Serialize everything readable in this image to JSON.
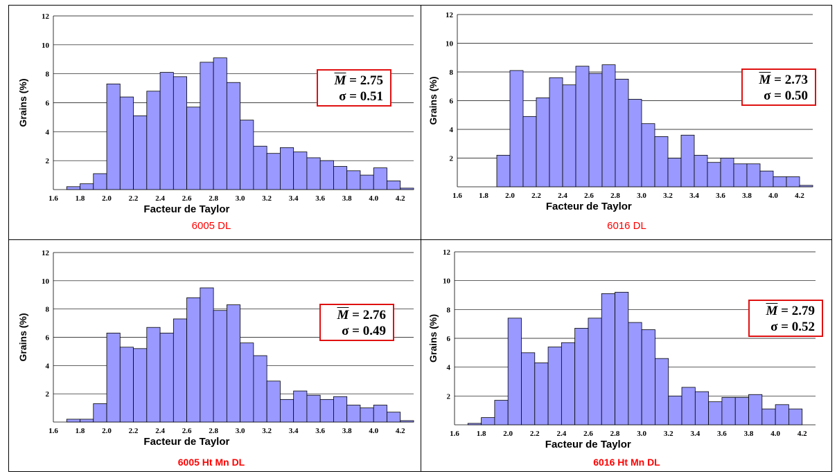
{
  "xlabel": "Facteur de Taylor",
  "ylabel": "Grains (%)",
  "colors": {
    "bar": "#9999ff",
    "box": "#e01010",
    "caption": "#ff0000"
  },
  "chart_data": [
    {
      "type": "bar",
      "caption": "6005 DL",
      "mean_label": "M̄ = 2.75",
      "mean_symbol": "M",
      "mean_value": "= 2.75",
      "sigma_symbol": "σ",
      "sigma_value": "= 0.51",
      "xlabel": "Facteur de Taylor",
      "ylabel": "Grains (%)",
      "ylim": [
        0,
        12
      ],
      "xlim": [
        1.6,
        4.3
      ],
      "y_ticks": [
        "2",
        "4",
        "6",
        "8",
        "10",
        "12"
      ],
      "x_ticks": [
        "1.6",
        "1.8",
        "2.0",
        "2.2",
        "2.4",
        "2.6",
        "2.8",
        "3.0",
        "3.2",
        "3.4",
        "3.6",
        "3.8",
        "4.0",
        "4.2"
      ],
      "bin_start": 1.7,
      "bin_width": 0.1,
      "values": [
        0.2,
        0.4,
        1.1,
        7.3,
        6.4,
        5.1,
        6.8,
        8.1,
        7.8,
        5.7,
        8.8,
        9.1,
        7.4,
        4.8,
        3.0,
        2.5,
        2.9,
        2.6,
        2.2,
        2.0,
        1.6,
        1.3,
        1.0,
        1.5,
        0.6,
        0.1
      ]
    },
    {
      "type": "bar",
      "caption": "6016 DL",
      "mean_symbol": "M",
      "mean_value": "= 2.73",
      "sigma_symbol": "σ",
      "sigma_value": "= 0.50",
      "xlabel": "Facteur de Taylor",
      "ylabel": "Grains (%)",
      "ylim": [
        0,
        12
      ],
      "xlim": [
        1.6,
        4.3
      ],
      "y_ticks": [
        "2",
        "4",
        "6",
        "8",
        "10",
        "12"
      ],
      "x_ticks": [
        "1.6",
        "1.8",
        "2.0",
        "2.2",
        "2.4",
        "2.6",
        "2.8",
        "3.0",
        "3.2",
        "3.4",
        "3.6",
        "3.8",
        "4.0",
        "4.2"
      ],
      "bin_start": 1.9,
      "bin_width": 0.1,
      "values": [
        2.2,
        8.1,
        4.9,
        6.2,
        7.6,
        7.1,
        8.4,
        7.9,
        8.5,
        7.5,
        6.1,
        4.4,
        3.5,
        2.0,
        3.6,
        2.2,
        1.7,
        2.0,
        1.6,
        1.6,
        1.1,
        0.7,
        0.7,
        0.1
      ]
    },
    {
      "type": "bar",
      "caption": "6005 Ht Mn DL",
      "mean_symbol": "M",
      "mean_value": "= 2.76",
      "sigma_symbol": "σ",
      "sigma_value": "= 0.49",
      "xlabel": "Facteur de Taylor",
      "ylabel": "Grains (%)",
      "ylim": [
        0,
        12
      ],
      "xlim": [
        1.6,
        4.3
      ],
      "y_ticks": [
        "2",
        "4",
        "6",
        "8",
        "10",
        "12"
      ],
      "x_ticks": [
        "1.6",
        "1.8",
        "2.0",
        "2.2",
        "2.4",
        "2.6",
        "2.8",
        "3.0",
        "3.2",
        "3.4",
        "3.6",
        "3.8",
        "4.0",
        "4.2"
      ],
      "bin_start": 1.7,
      "bin_width": 0.1,
      "values": [
        0.2,
        0.2,
        1.3,
        6.3,
        5.3,
        5.2,
        6.7,
        6.3,
        7.3,
        8.8,
        9.5,
        7.9,
        8.3,
        5.6,
        4.7,
        2.9,
        1.6,
        2.2,
        1.9,
        1.6,
        1.8,
        1.2,
        1.0,
        1.2,
        0.7,
        0.1
      ]
    },
    {
      "type": "bar",
      "caption": "6016 Ht Mn DL",
      "mean_symbol": "M",
      "mean_value": "= 2.79",
      "sigma_symbol": "σ",
      "sigma_value": "= 0.52",
      "xlabel": "Facteur de Taylor",
      "ylabel": "Grains (%)",
      "ylim": [
        0,
        12
      ],
      "xlim": [
        1.6,
        4.3
      ],
      "y_ticks": [
        "2",
        "4",
        "6",
        "8",
        "10",
        "12"
      ],
      "x_ticks": [
        "1.6",
        "1.8",
        "2.0",
        "2.2",
        "2.4",
        "2.6",
        "2.8",
        "3.0",
        "3.2",
        "3.4",
        "3.6",
        "3.8",
        "4.0",
        "4.2"
      ],
      "bin_start": 1.7,
      "bin_width": 0.1,
      "values": [
        0.1,
        0.5,
        1.7,
        7.4,
        5.0,
        4.3,
        5.4,
        5.7,
        6.7,
        7.4,
        9.1,
        9.2,
        7.1,
        6.6,
        4.6,
        2.0,
        2.6,
        2.3,
        1.6,
        1.9,
        1.9,
        2.1,
        1.1,
        1.4,
        1.1
      ]
    }
  ]
}
